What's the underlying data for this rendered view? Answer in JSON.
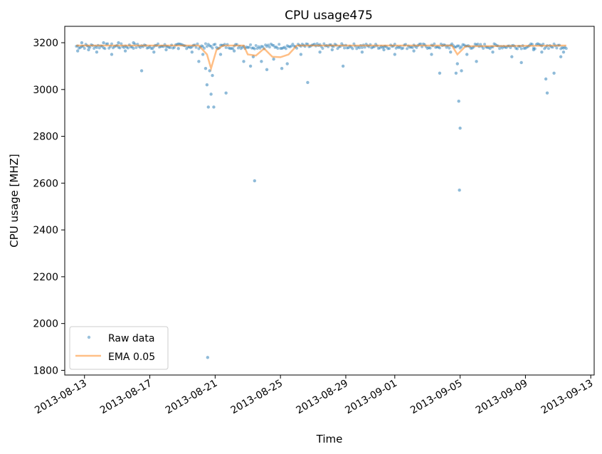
{
  "chart_data": {
    "type": "scatter",
    "title": "CPU usage475",
    "xlabel": "Time",
    "ylabel": "CPU usage [MHZ]",
    "xlim": [
      "2013-08-11T19:00",
      "2013-09-13T05:00"
    ],
    "ylim": [
      1780,
      3270
    ],
    "xticks": [
      "2013-08-13",
      "2013-08-17",
      "2013-08-21",
      "2013-08-25",
      "2013-08-29",
      "2013-09-01",
      "2013-09-05",
      "2013-09-09",
      "2013-09-13"
    ],
    "yticks": [
      1800,
      2000,
      2200,
      2400,
      2600,
      2800,
      3000,
      3200
    ],
    "grid": false,
    "legend_position": "lower-left",
    "colors": {
      "raw": "#1f77b4",
      "ema": "#ff7f0e"
    },
    "series": [
      {
        "name": "Raw data",
        "style": "markers",
        "baseline": 3185,
        "x_range": [
          "2013-08-12T12:00",
          "2013-09-11T12:00"
        ],
        "outliers": [
          {
            "x": "2013-08-12T14:00",
            "y": 3165
          },
          {
            "x": "2013-08-12T20:00",
            "y": 3200
          },
          {
            "x": "2013-08-13T06:00",
            "y": 3170
          },
          {
            "x": "2013-08-13T18:00",
            "y": 3160
          },
          {
            "x": "2013-08-14T04:00",
            "y": 3200
          },
          {
            "x": "2013-08-14T16:00",
            "y": 3150
          },
          {
            "x": "2013-08-15T02:00",
            "y": 3200
          },
          {
            "x": "2013-08-15T12:00",
            "y": 3165
          },
          {
            "x": "2013-08-16T00:00",
            "y": 3200
          },
          {
            "x": "2013-08-16T12:00",
            "y": 3080
          },
          {
            "x": "2013-08-17T06:00",
            "y": 3160
          },
          {
            "x": "2013-08-18T00:00",
            "y": 3170
          },
          {
            "x": "2013-08-18T18:00",
            "y": 3175
          },
          {
            "x": "2013-08-19T14:00",
            "y": 3160
          },
          {
            "x": "2013-08-20T00:00",
            "y": 3120
          },
          {
            "x": "2013-08-20T06:00",
            "y": 3150
          },
          {
            "x": "2013-08-20T10:00",
            "y": 3090
          },
          {
            "x": "2013-08-20T12:00",
            "y": 3020
          },
          {
            "x": "2013-08-20T14:00",
            "y": 2925
          },
          {
            "x": "2013-08-20T16:00",
            "y": 3080
          },
          {
            "x": "2013-08-20T18:00",
            "y": 2980
          },
          {
            "x": "2013-08-20T20:00",
            "y": 3060
          },
          {
            "x": "2013-08-20T22:00",
            "y": 2925
          },
          {
            "x": "2013-08-20T13:00",
            "y": 1855
          },
          {
            "x": "2013-08-21T08:00",
            "y": 3150
          },
          {
            "x": "2013-08-21T16:00",
            "y": 2985
          },
          {
            "x": "2013-08-22T04:00",
            "y": 3165
          },
          {
            "x": "2013-08-22T18:00",
            "y": 3120
          },
          {
            "x": "2013-08-23T04:00",
            "y": 3100
          },
          {
            "x": "2013-08-23T08:00",
            "y": 3140
          },
          {
            "x": "2013-08-23T10:00",
            "y": 2610
          },
          {
            "x": "2013-08-23T20:00",
            "y": 3120
          },
          {
            "x": "2013-08-24T04:00",
            "y": 3085
          },
          {
            "x": "2013-08-24T14:00",
            "y": 3130
          },
          {
            "x": "2013-08-25T02:00",
            "y": 3090
          },
          {
            "x": "2013-08-25T10:00",
            "y": 3110
          },
          {
            "x": "2013-08-26T06:00",
            "y": 3150
          },
          {
            "x": "2013-08-26T16:00",
            "y": 3030
          },
          {
            "x": "2013-08-27T10:00",
            "y": 3160
          },
          {
            "x": "2013-08-28T04:00",
            "y": 3170
          },
          {
            "x": "2013-08-28T20:00",
            "y": 3100
          },
          {
            "x": "2013-08-30T00:00",
            "y": 3160
          },
          {
            "x": "2013-08-31T08:00",
            "y": 3170
          },
          {
            "x": "2013-09-01T00:00",
            "y": 3150
          },
          {
            "x": "2013-09-02T04:00",
            "y": 3165
          },
          {
            "x": "2013-09-03T06:00",
            "y": 3150
          },
          {
            "x": "2013-09-03T18:00",
            "y": 3070
          },
          {
            "x": "2013-09-04T10:00",
            "y": 3160
          },
          {
            "x": "2013-09-04T18:00",
            "y": 3070
          },
          {
            "x": "2013-09-04T20:00",
            "y": 3110
          },
          {
            "x": "2013-09-04T22:00",
            "y": 2950
          },
          {
            "x": "2013-09-05T00:00",
            "y": 2835
          },
          {
            "x": "2013-09-04T23:00",
            "y": 2570
          },
          {
            "x": "2013-09-05T02:00",
            "y": 3080
          },
          {
            "x": "2013-09-05T10:00",
            "y": 3150
          },
          {
            "x": "2013-09-06T00:00",
            "y": 3120
          },
          {
            "x": "2013-09-07T00:00",
            "y": 3160
          },
          {
            "x": "2013-09-08T04:00",
            "y": 3140
          },
          {
            "x": "2013-09-08T18:00",
            "y": 3115
          },
          {
            "x": "2013-09-09T12:00",
            "y": 3170
          },
          {
            "x": "2013-09-10T00:00",
            "y": 3160
          },
          {
            "x": "2013-09-10T06:00",
            "y": 3045
          },
          {
            "x": "2013-09-10T08:00",
            "y": 2985
          },
          {
            "x": "2013-09-10T18:00",
            "y": 3070
          },
          {
            "x": "2013-09-11T04:00",
            "y": 3140
          },
          {
            "x": "2013-09-11T08:00",
            "y": 3160
          }
        ]
      },
      {
        "name": "EMA 0.05",
        "style": "line",
        "points": [
          {
            "x": "2013-08-12T12:00",
            "y": 3188
          },
          {
            "x": "2013-08-20T00:00",
            "y": 3188
          },
          {
            "x": "2013-08-20T12:00",
            "y": 3150
          },
          {
            "x": "2013-08-20T18:00",
            "y": 3090
          },
          {
            "x": "2013-08-21T02:00",
            "y": 3170
          },
          {
            "x": "2013-08-21T12:00",
            "y": 3188
          },
          {
            "x": "2013-08-22T18:00",
            "y": 3188
          },
          {
            "x": "2013-08-23T00:00",
            "y": 3150
          },
          {
            "x": "2013-08-23T12:00",
            "y": 3145
          },
          {
            "x": "2013-08-24T00:00",
            "y": 3175
          },
          {
            "x": "2013-08-24T12:00",
            "y": 3140
          },
          {
            "x": "2013-08-25T00:00",
            "y": 3138
          },
          {
            "x": "2013-08-25T12:00",
            "y": 3150
          },
          {
            "x": "2013-08-26T00:00",
            "y": 3188
          },
          {
            "x": "2013-09-04T12:00",
            "y": 3188
          },
          {
            "x": "2013-09-04T20:00",
            "y": 3150
          },
          {
            "x": "2013-09-05T08:00",
            "y": 3185
          },
          {
            "x": "2013-09-11T12:00",
            "y": 3188
          }
        ]
      }
    ]
  }
}
